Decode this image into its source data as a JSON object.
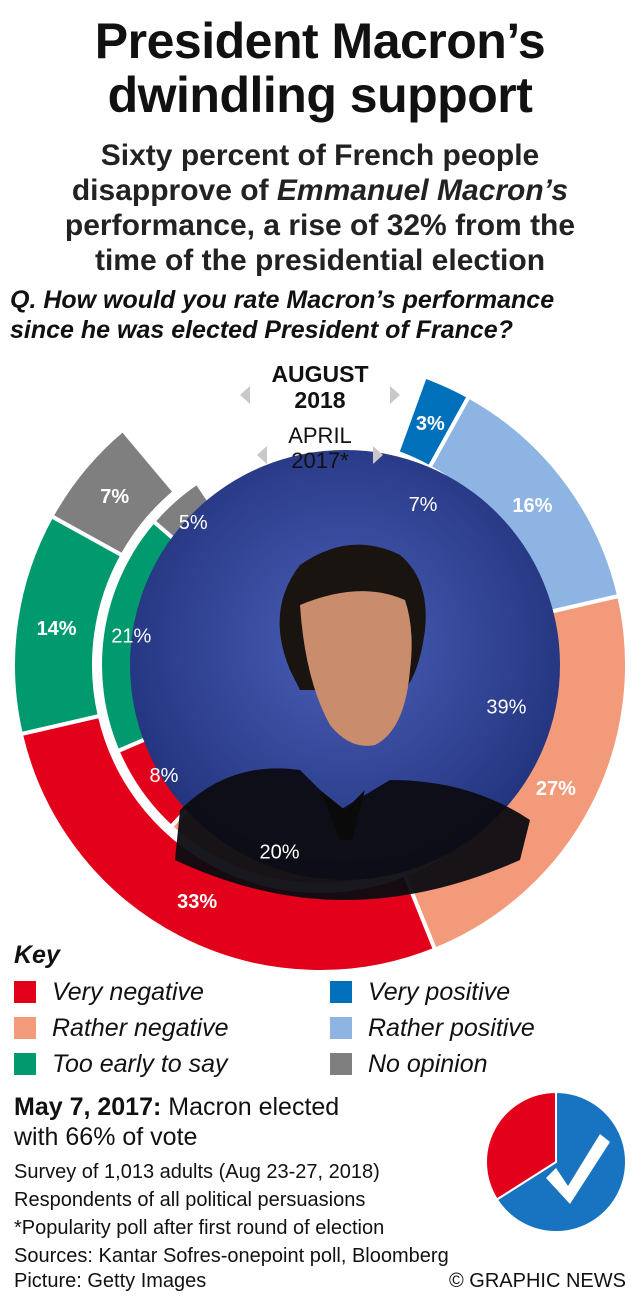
{
  "header": {
    "title_line1": "President Macron’s",
    "title_line2": "dwindling support",
    "subtitle_line1": "Sixty percent of French people",
    "subtitle_line2_pre": "disapprove of ",
    "subtitle_line2_em": "Emmanuel Macron’s",
    "subtitle_line3": "performance, a rise of 32% from the",
    "subtitle_line4": "time of the presidential election",
    "question_line1": "Q. How would you rate Macron’s performance",
    "question_line2": "since he was elected President of France?"
  },
  "chart_data": [
    {
      "type": "pie",
      "subtype": "nested-donut",
      "outer_label_line1": "AUGUST",
      "outer_label_line2": "2018",
      "inner_label_line1": "APRIL",
      "inner_label_line2": "2017*",
      "rings": [
        {
          "name": "August 2018",
          "ring": "outer",
          "slices": [
            {
              "category": "Very positive",
              "value": 3,
              "label": "3%"
            },
            {
              "category": "Rather positive",
              "value": 16,
              "label": "16%"
            },
            {
              "category": "Rather negative",
              "value": 27,
              "label": "27%"
            },
            {
              "category": "Very negative",
              "value": 33,
              "label": "33%"
            },
            {
              "category": "Too early to say",
              "value": 14,
              "label": "14%"
            },
            {
              "category": "No opinion",
              "value": 7,
              "label": "7%"
            }
          ]
        },
        {
          "name": "April 2017*",
          "ring": "inner",
          "slices": [
            {
              "category": "Very positive",
              "value": 7,
              "label": "7%"
            },
            {
              "category": "Rather positive",
              "value": 39,
              "label": "39%"
            },
            {
              "category": "Rather negative",
              "value": 20,
              "label": "20%"
            },
            {
              "category": "Very negative",
              "value": 8,
              "label": "8%"
            },
            {
              "category": "Too early to say",
              "value": 21,
              "label": "21%"
            },
            {
              "category": "No opinion",
              "value": 5,
              "label": "5%"
            }
          ]
        }
      ]
    },
    {
      "type": "pie",
      "title": "Macron elected with 66% of vote",
      "slices": [
        {
          "category": "Macron",
          "value": 66
        },
        {
          "category": "Other",
          "value": 34
        }
      ]
    }
  ],
  "colors": {
    "Very negative": "#e2001a",
    "Rather negative": "#f29a7a",
    "Too early to say": "#009a6e",
    "Very positive": "#0070bb",
    "Rather positive": "#8db4e2",
    "No opinion": "#7f7f7f",
    "Macron": "#1874c0",
    "Other": "#e2001a",
    "photo": "#2b3f8f"
  },
  "key": {
    "title": "Key",
    "items": [
      {
        "label": "Very negative",
        "color": "#e2001a"
      },
      {
        "label": "Rather negative",
        "color": "#f29a7a"
      },
      {
        "label": "Too early to say",
        "color": "#009a6e"
      },
      {
        "label": "Very positive",
        "color": "#0070bb"
      },
      {
        "label": "Rather positive",
        "color": "#8db4e2"
      },
      {
        "label": "No opinion",
        "color": "#7f7f7f"
      }
    ]
  },
  "election": {
    "date": "May 7, 2017:",
    "text_line1": " Macron elected",
    "text_line2": "with 66% of vote",
    "check_icon": "check-icon"
  },
  "notes": {
    "line1": "Survey of 1,013 adults (Aug 23-27, 2018)",
    "line2": "Respondents of all political persuasions",
    "line3": "*Popularity poll after first round of election",
    "line4": "Sources: Kantar Sofres-onepoint poll, Bloomberg"
  },
  "footer": {
    "credit": "Picture: Getty Images",
    "brand": "© GRAPHIC NEWS"
  }
}
